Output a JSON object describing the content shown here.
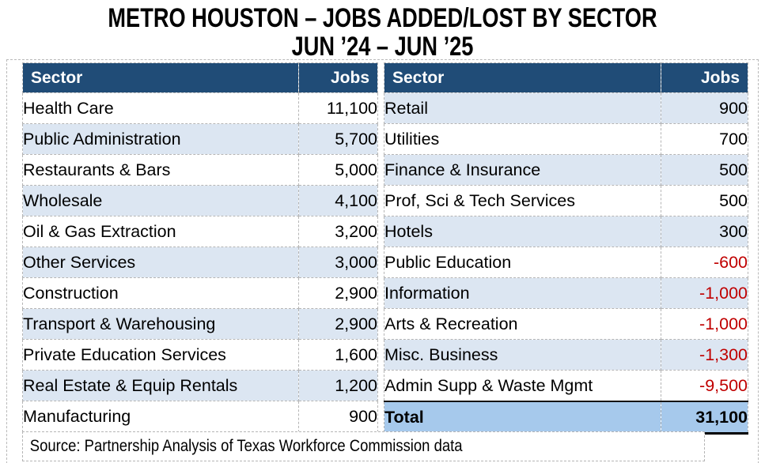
{
  "title": {
    "line1": "METRO HOUSTON – JOBS ADDED/LOST BY SECTOR",
    "line2": "JUN ’24 – JUN ’25"
  },
  "colors": {
    "header_bg": "#204C77",
    "header_text": "#FFFFFF",
    "alt_row_bg": "#DCE6F2",
    "total_row_bg": "#A6C9EC",
    "negative_text": "#C00000",
    "cell_border": "#B5B5B5"
  },
  "tables": {
    "left": {
      "headers": {
        "sector": "Sector",
        "jobs": "Jobs"
      },
      "rows": [
        {
          "sector": "Health Care",
          "jobs": "11,100"
        },
        {
          "sector": "Public Administration",
          "jobs": "5,700"
        },
        {
          "sector": "Restaurants & Bars",
          "jobs": "5,000"
        },
        {
          "sector": "Wholesale",
          "jobs": "4,100"
        },
        {
          "sector": "Oil & Gas Extraction",
          "jobs": "3,200"
        },
        {
          "sector": "Other Services",
          "jobs": "3,000"
        },
        {
          "sector": "Construction",
          "jobs": "2,900"
        },
        {
          "sector": "Transport & Warehousing",
          "jobs": "2,900"
        },
        {
          "sector": "Private Education Services",
          "jobs": "1,600"
        },
        {
          "sector": "Real Estate & Equip Rentals",
          "jobs": "1,200"
        },
        {
          "sector": "Manufacturing",
          "jobs": "900"
        }
      ]
    },
    "right": {
      "headers": {
        "sector": "Sector",
        "jobs": "Jobs"
      },
      "rows": [
        {
          "sector": "Retail",
          "jobs": "900"
        },
        {
          "sector": "Utilities",
          "jobs": "700"
        },
        {
          "sector": "Finance & Insurance",
          "jobs": "500"
        },
        {
          "sector": "Prof, Sci & Tech Services",
          "jobs": "500"
        },
        {
          "sector": "Hotels",
          "jobs": "300"
        },
        {
          "sector": "Public Education",
          "jobs": "-600"
        },
        {
          "sector": "Information",
          "jobs": "-1,000"
        },
        {
          "sector": "Arts & Recreation",
          "jobs": "-1,000"
        },
        {
          "sector": "Misc. Business",
          "jobs": "-1,300"
        },
        {
          "sector": "Admin Supp & Waste Mgmt",
          "jobs": "-9,500"
        }
      ],
      "total": {
        "label": "Total",
        "jobs": "31,100"
      }
    }
  },
  "footer": {
    "source": "Source: Partnership Analysis of Texas Workforce Commission data"
  },
  "chart_data": {
    "type": "table",
    "title": "METRO HOUSTON – JOBS ADDED/LOST BY SECTOR",
    "subtitle": "JUN ’24 – JUN ’25",
    "columns": [
      "Sector",
      "Jobs"
    ],
    "rows": [
      [
        "Health Care",
        11100
      ],
      [
        "Public Administration",
        5700
      ],
      [
        "Restaurants & Bars",
        5000
      ],
      [
        "Wholesale",
        4100
      ],
      [
        "Oil & Gas Extraction",
        3200
      ],
      [
        "Other Services",
        3000
      ],
      [
        "Construction",
        2900
      ],
      [
        "Transport & Warehousing",
        2900
      ],
      [
        "Private Education Services",
        1600
      ],
      [
        "Real Estate & Equip Rentals",
        1200
      ],
      [
        "Manufacturing",
        900
      ],
      [
        "Retail",
        900
      ],
      [
        "Utilities",
        700
      ],
      [
        "Finance & Insurance",
        500
      ],
      [
        "Prof, Sci & Tech Services",
        500
      ],
      [
        "Hotels",
        300
      ],
      [
        "Public Education",
        -600
      ],
      [
        "Information",
        -1000
      ],
      [
        "Arts & Recreation",
        -1000
      ],
      [
        "Misc. Business",
        -1300
      ],
      [
        "Admin Supp & Waste Mgmt",
        -9500
      ]
    ],
    "total": [
      "Total",
      31100
    ],
    "source": "Source: Partnership Analysis of Texas Workforce Commission data",
    "layout_hints": {
      "negative_values_in_red": true,
      "two_column_table_split": true
    }
  }
}
